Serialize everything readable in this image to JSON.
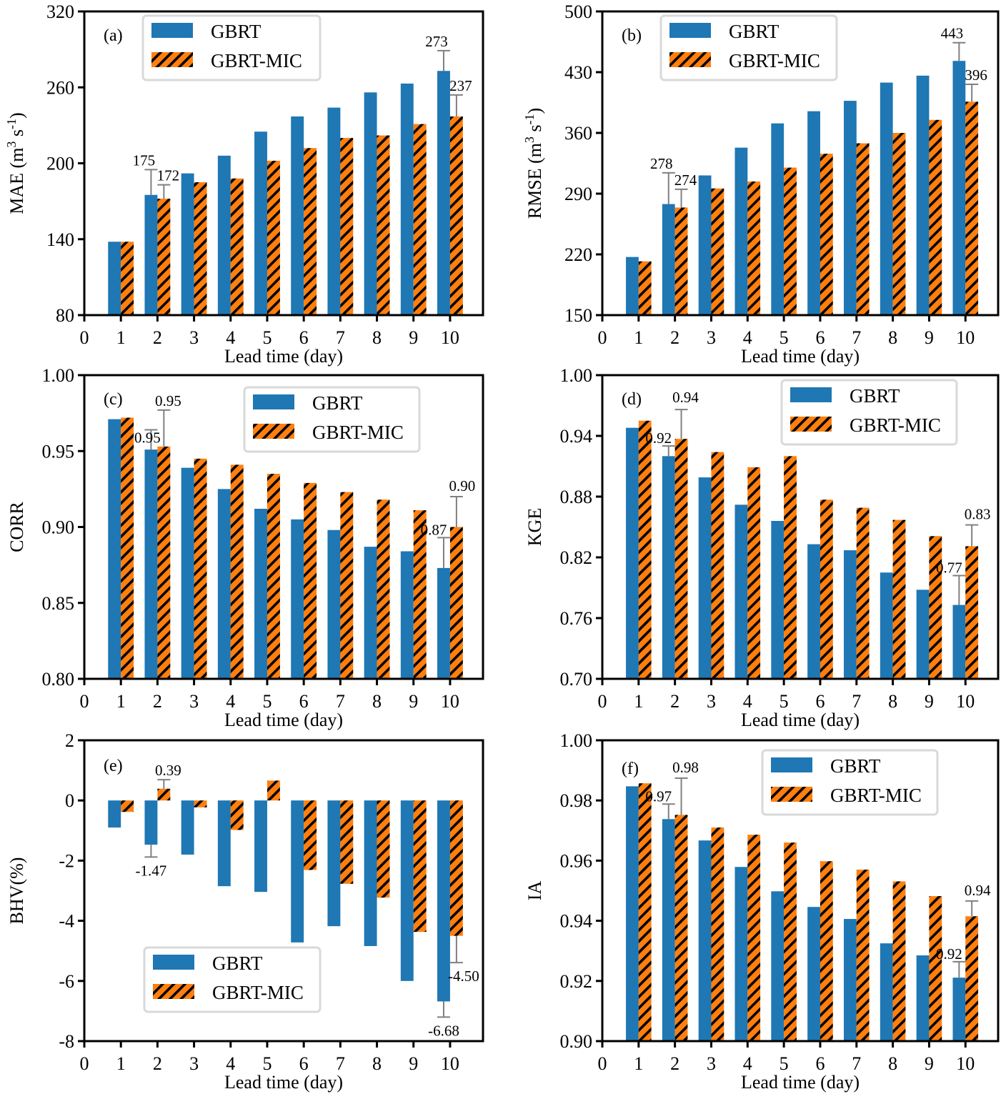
{
  "figure": {
    "series_names": [
      "GBRT",
      "GBRT-MIC"
    ],
    "colors": {
      "GBRT": "#1f77b4",
      "GBRT-MIC": "#ff7f0e",
      "hatch": "#000000",
      "errorbar": "#808080",
      "legend_border": "#d9d9d9"
    }
  },
  "chart_data": [
    {
      "type": "bar",
      "panel": "(a)",
      "xlabel": "Lead time (day)",
      "ylabel": "MAE (m3 s-1)",
      "ylabel_parts": {
        "main": "MAE (m",
        "sup1": "3",
        "mid": " s",
        "sup2": "-1",
        "end": ")"
      },
      "x_ticks": [
        0,
        1,
        2,
        3,
        4,
        5,
        6,
        7,
        8,
        9,
        10
      ],
      "xlim": [
        0,
        10.9
      ],
      "ylim": [
        80,
        320
      ],
      "y_ticks": [
        80,
        140,
        200,
        260,
        320
      ],
      "y_tick_labels": [
        "80",
        "140",
        "200",
        "260",
        "320"
      ],
      "categories": [
        1,
        2,
        3,
        4,
        5,
        6,
        7,
        8,
        9,
        10
      ],
      "series": [
        {
          "name": "GBRT",
          "values": [
            138,
            175,
            192,
            206,
            225,
            237,
            244,
            256,
            263,
            273
          ]
        },
        {
          "name": "GBRT-MIC",
          "values": [
            138,
            172,
            185,
            188,
            202,
            212,
            220,
            222,
            231,
            237
          ]
        }
      ],
      "error_bars": [
        {
          "series": "GBRT",
          "day": 2,
          "upper": 195
        },
        {
          "series": "GBRT-MIC",
          "day": 2,
          "upper": 183
        },
        {
          "series": "GBRT",
          "day": 10,
          "upper": 289
        },
        {
          "series": "GBRT-MIC",
          "day": 10,
          "upper": 254
        }
      ],
      "annotations": [
        {
          "series": "GBRT",
          "day": 2,
          "text": "175"
        },
        {
          "series": "GBRT-MIC",
          "day": 2,
          "text": "172"
        },
        {
          "series": "GBRT",
          "day": 10,
          "text": "273"
        },
        {
          "series": "GBRT-MIC",
          "day": 10,
          "text": "237"
        }
      ],
      "legend": "top-left"
    },
    {
      "type": "bar",
      "panel": "(b)",
      "xlabel": "Lead time (day)",
      "ylabel": "RMSE (m3 s-1)",
      "ylabel_parts": {
        "main": "RMSE (m",
        "sup1": "3",
        "mid": " s",
        "sup2": "-1",
        "end": ")"
      },
      "x_ticks": [
        0,
        1,
        2,
        3,
        4,
        5,
        6,
        7,
        8,
        9,
        10
      ],
      "xlim": [
        0,
        10.9
      ],
      "ylim": [
        150,
        500
      ],
      "y_ticks": [
        150,
        220,
        290,
        360,
        430,
        500
      ],
      "y_tick_labels": [
        "150",
        "220",
        "290",
        "360",
        "430",
        "500"
      ],
      "categories": [
        1,
        2,
        3,
        4,
        5,
        6,
        7,
        8,
        9,
        10
      ],
      "series": [
        {
          "name": "GBRT",
          "values": [
            217,
            278,
            311,
            343,
            371,
            385,
            397,
            418,
            426,
            443
          ]
        },
        {
          "name": "GBRT-MIC",
          "values": [
            212,
            274,
            296,
            304,
            320,
            336,
            348,
            360,
            375,
            396
          ]
        }
      ],
      "error_bars": [
        {
          "series": "GBRT",
          "day": 2,
          "upper": 314
        },
        {
          "series": "GBRT-MIC",
          "day": 2,
          "upper": 295
        },
        {
          "series": "GBRT",
          "day": 10,
          "upper": 464
        },
        {
          "series": "GBRT-MIC",
          "day": 10,
          "upper": 416
        }
      ],
      "annotations": [
        {
          "series": "GBRT",
          "day": 2,
          "text": "278"
        },
        {
          "series": "GBRT-MIC",
          "day": 2,
          "text": "274"
        },
        {
          "series": "GBRT",
          "day": 10,
          "text": "443"
        },
        {
          "series": "GBRT-MIC",
          "day": 10,
          "text": "396"
        }
      ],
      "legend": "top-left"
    },
    {
      "type": "bar",
      "panel": "(c)",
      "xlabel": "Lead time (day)",
      "ylabel": "CORR",
      "x_ticks": [
        0,
        1,
        2,
        3,
        4,
        5,
        6,
        7,
        8,
        9,
        10
      ],
      "xlim": [
        0,
        10.9
      ],
      "ylim": [
        0.8,
        1.0
      ],
      "y_ticks": [
        0.8,
        0.85,
        0.9,
        0.95,
        1.0
      ],
      "y_tick_labels": [
        "0.80",
        "0.85",
        "0.90",
        "0.95",
        "1.00"
      ],
      "categories": [
        1,
        2,
        3,
        4,
        5,
        6,
        7,
        8,
        9,
        10
      ],
      "series": [
        {
          "name": "GBRT",
          "values": [
            0.971,
            0.951,
            0.939,
            0.925,
            0.912,
            0.905,
            0.898,
            0.887,
            0.884,
            0.873
          ]
        },
        {
          "name": "GBRT-MIC",
          "values": [
            0.972,
            0.953,
            0.945,
            0.941,
            0.935,
            0.929,
            0.923,
            0.918,
            0.911,
            0.9
          ]
        }
      ],
      "error_bars": [
        {
          "series": "GBRT",
          "day": 2,
          "upper": 0.964
        },
        {
          "series": "GBRT-MIC",
          "day": 2,
          "upper": 0.977
        },
        {
          "series": "GBRT",
          "day": 10,
          "upper": 0.893
        },
        {
          "series": "GBRT-MIC",
          "day": 10,
          "upper": 0.92
        }
      ],
      "annotations": [
        {
          "series": "GBRT",
          "day": 2,
          "text": "0.95"
        },
        {
          "series": "GBRT-MIC",
          "day": 2,
          "text": "0.95"
        },
        {
          "series": "GBRT",
          "day": 10,
          "text": "0.87"
        },
        {
          "series": "GBRT-MIC",
          "day": 10,
          "text": "0.90"
        }
      ],
      "legend": "top-center"
    },
    {
      "type": "bar",
      "panel": "(d)",
      "xlabel": "Lead time (day)",
      "ylabel": "KGE",
      "x_ticks": [
        0,
        1,
        2,
        3,
        4,
        5,
        6,
        7,
        8,
        9,
        10
      ],
      "xlim": [
        0,
        10.9
      ],
      "ylim": [
        0.7,
        1.0
      ],
      "y_ticks": [
        0.7,
        0.76,
        0.82,
        0.88,
        0.94,
        1.0
      ],
      "y_tick_labels": [
        "0.70",
        "0.76",
        "0.82",
        "0.88",
        "0.94",
        "1.00"
      ],
      "categories": [
        1,
        2,
        3,
        4,
        5,
        6,
        7,
        8,
        9,
        10
      ],
      "series": [
        {
          "name": "GBRT",
          "values": [
            0.948,
            0.92,
            0.899,
            0.872,
            0.856,
            0.833,
            0.827,
            0.805,
            0.788,
            0.773
          ]
        },
        {
          "name": "GBRT-MIC",
          "values": [
            0.955,
            0.937,
            0.924,
            0.909,
            0.92,
            0.877,
            0.869,
            0.857,
            0.841,
            0.831
          ]
        }
      ],
      "error_bars": [
        {
          "series": "GBRT",
          "day": 2,
          "upper": 0.93
        },
        {
          "series": "GBRT-MIC",
          "day": 2,
          "upper": 0.966
        },
        {
          "series": "GBRT",
          "day": 10,
          "upper": 0.802
        },
        {
          "series": "GBRT-MIC",
          "day": 10,
          "upper": 0.852
        }
      ],
      "annotations": [
        {
          "series": "GBRT",
          "day": 2,
          "text": "0.92"
        },
        {
          "series": "GBRT-MIC",
          "day": 2,
          "text": "0.94"
        },
        {
          "series": "GBRT",
          "day": 10,
          "text": "0.77"
        },
        {
          "series": "GBRT-MIC",
          "day": 10,
          "text": "0.83"
        }
      ],
      "legend": "top-right"
    },
    {
      "type": "bar",
      "panel": "(e)",
      "xlabel": "Lead time (day)",
      "ylabel": "BHV(%)",
      "x_ticks": [
        0,
        1,
        2,
        3,
        4,
        5,
        6,
        7,
        8,
        9,
        10
      ],
      "xlim": [
        0,
        10.9
      ],
      "ylim": [
        -8,
        2
      ],
      "y_ticks": [
        -8,
        -6,
        -4,
        -2,
        0,
        2
      ],
      "y_tick_labels": [
        "-8",
        "-6",
        "-4",
        "-2",
        "0",
        "2"
      ],
      "categories": [
        1,
        2,
        3,
        4,
        5,
        6,
        7,
        8,
        9,
        10
      ],
      "series": [
        {
          "name": "GBRT",
          "values": [
            -0.9,
            -1.47,
            -1.8,
            -2.85,
            -3.04,
            -4.72,
            -4.18,
            -4.84,
            -6.0,
            -6.68
          ]
        },
        {
          "name": "GBRT-MIC",
          "values": [
            -0.38,
            0.39,
            -0.23,
            -0.98,
            0.66,
            -2.31,
            -2.77,
            -3.23,
            -4.37,
            -4.5
          ]
        }
      ],
      "error_bars": [
        {
          "series": "GBRT",
          "day": 2,
          "upper": -1.88
        },
        {
          "series": "GBRT-MIC",
          "day": 2,
          "upper": 0.69
        },
        {
          "series": "GBRT",
          "day": 10,
          "upper": -7.2
        },
        {
          "series": "GBRT-MIC",
          "day": 10,
          "upper": -5.39
        }
      ],
      "annotations": [
        {
          "series": "GBRT",
          "day": 2,
          "text": "-1.47"
        },
        {
          "series": "GBRT-MIC",
          "day": 2,
          "text": "0.39"
        },
        {
          "series": "GBRT",
          "day": 10,
          "text": "-6.68"
        },
        {
          "series": "GBRT-MIC",
          "day": 10,
          "text": "-4.50"
        }
      ],
      "legend": "bottom-left"
    },
    {
      "type": "bar",
      "panel": "(f)",
      "xlabel": "Lead time (day)",
      "ylabel": "IA",
      "x_ticks": [
        0,
        1,
        2,
        3,
        4,
        5,
        6,
        7,
        8,
        9,
        10
      ],
      "xlim": [
        0,
        10.9
      ],
      "ylim": [
        0.9,
        1.0
      ],
      "y_ticks": [
        0.9,
        0.92,
        0.94,
        0.96,
        0.98,
        1.0
      ],
      "y_tick_labels": [
        "0.90",
        "0.92",
        "0.94",
        "0.96",
        "0.98",
        "1.00"
      ],
      "categories": [
        1,
        2,
        3,
        4,
        5,
        6,
        7,
        8,
        9,
        10
      ],
      "series": [
        {
          "name": "GBRT",
          "values": [
            0.9847,
            0.9738,
            0.9667,
            0.9579,
            0.9498,
            0.9446,
            0.9406,
            0.9325,
            0.9285,
            0.9211
          ]
        },
        {
          "name": "GBRT-MIC",
          "values": [
            0.9857,
            0.9752,
            0.971,
            0.9686,
            0.966,
            0.9598,
            0.957,
            0.9531,
            0.9482,
            0.9415
          ]
        }
      ],
      "error_bars": [
        {
          "series": "GBRT",
          "day": 2,
          "upper": 0.9788
        },
        {
          "series": "GBRT-MIC",
          "day": 2,
          "upper": 0.9874
        },
        {
          "series": "GBRT",
          "day": 10,
          "upper": 0.9264
        },
        {
          "series": "GBRT-MIC",
          "day": 10,
          "upper": 0.9466
        }
      ],
      "annotations": [
        {
          "series": "GBRT",
          "day": 2,
          "text": "0.97"
        },
        {
          "series": "GBRT-MIC",
          "day": 2,
          "text": "0.98"
        },
        {
          "series": "GBRT",
          "day": 10,
          "text": "0.92"
        },
        {
          "series": "GBRT-MIC",
          "day": 10,
          "text": "0.94"
        }
      ],
      "legend": "top-center"
    }
  ]
}
